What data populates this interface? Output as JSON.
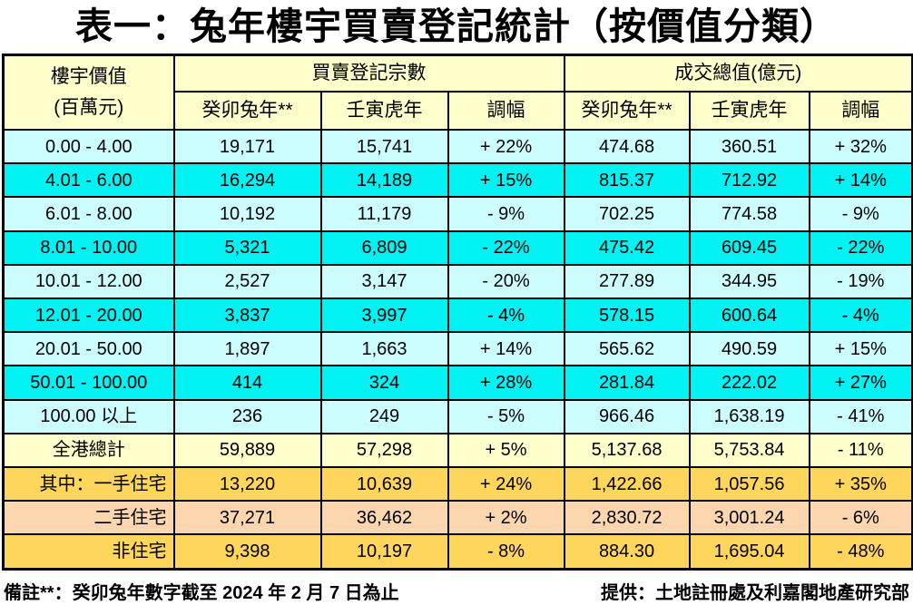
{
  "title": "表一：兔年樓宇買賣登記統計（按價值分類）",
  "colors": {
    "header_bg": "#FFFFCC",
    "border": "#000000",
    "text": "#000000",
    "row_styles": {
      "light_cyan": "#CCFEFF",
      "cyan": "#00F2F2",
      "total": "#FFFFCC",
      "gold": "#FFD65C",
      "peach": "#FBD6AF"
    }
  },
  "table": {
    "corner_header": {
      "line1": "樓宇價值",
      "line2": "(百萬元)"
    },
    "groups": [
      {
        "label": "買賣登記宗數"
      },
      {
        "label": "成交總值(億元)"
      }
    ],
    "sub_headers": [
      "癸卯兔年**",
      "壬寅虎年",
      "調幅",
      "癸卯兔年**",
      "壬寅虎年",
      "調幅"
    ],
    "rows": [
      {
        "label": "0.00 - 4.00",
        "style": "light_cyan",
        "align": "center",
        "cells": [
          "19,171",
          "15,741",
          "+ 22%",
          "474.68",
          "360.51",
          "+ 32%"
        ]
      },
      {
        "label": "4.01 - 6.00",
        "style": "cyan",
        "align": "center",
        "cells": [
          "16,294",
          "14,189",
          "+ 15%",
          "815.37",
          "712.92",
          "+ 14%"
        ]
      },
      {
        "label": "6.01 - 8.00",
        "style": "light_cyan",
        "align": "center",
        "cells": [
          "10,192",
          "11,179",
          "- 9%",
          "702.25",
          "774.58",
          "- 9%"
        ]
      },
      {
        "label": "8.01 - 10.00",
        "style": "cyan",
        "align": "center",
        "cells": [
          "5,321",
          "6,809",
          "- 22%",
          "475.42",
          "609.45",
          "- 22%"
        ]
      },
      {
        "label": "10.01 - 12.00",
        "style": "light_cyan",
        "align": "center",
        "cells": [
          "2,527",
          "3,147",
          "- 20%",
          "277.89",
          "344.95",
          "- 19%"
        ]
      },
      {
        "label": "12.01 - 20.00",
        "style": "cyan",
        "align": "center",
        "cells": [
          "3,837",
          "3,997",
          "- 4%",
          "578.15",
          "600.64",
          "- 4%"
        ]
      },
      {
        "label": "20.01 - 50.00",
        "style": "light_cyan",
        "align": "center",
        "cells": [
          "1,897",
          "1,663",
          "+ 14%",
          "565.62",
          "490.59",
          "+ 15%"
        ]
      },
      {
        "label": "50.01 - 100.00",
        "style": "cyan",
        "align": "center",
        "cells": [
          "414",
          "324",
          "+ 28%",
          "281.84",
          "222.02",
          "+ 27%"
        ]
      },
      {
        "label": "100.00 以上",
        "style": "light_cyan",
        "align": "center",
        "cells": [
          "236",
          "249",
          "- 5%",
          "966.46",
          "1,638.19",
          "- 41%"
        ]
      },
      {
        "label": "全港總計",
        "style": "total",
        "align": "center",
        "cells": [
          "59,889",
          "57,298",
          "+ 5%",
          "5,137.68",
          "5,753.84",
          "- 11%"
        ]
      },
      {
        "label": "其中：一手住宅",
        "style": "gold",
        "align": "right",
        "cells": [
          "13,220",
          "10,639",
          "+ 24%",
          "1,422.66",
          "1,057.56",
          "+ 35%"
        ]
      },
      {
        "label": "二手住宅",
        "style": "peach",
        "align": "right",
        "cells": [
          "37,271",
          "36,462",
          "+ 2%",
          "2,830.72",
          "3,001.24",
          "- 6%"
        ]
      },
      {
        "label": "非住宅",
        "style": "gold",
        "align": "right",
        "cells": [
          "9,398",
          "10,197",
          "- 8%",
          "884.30",
          "1,695.04",
          "- 48%"
        ]
      }
    ]
  },
  "footer": {
    "left": "備註**：癸卯兔年數字截至 2024 年 2 月 7 日為止",
    "right": "提供：土地註冊處及利嘉閣地產研究部"
  }
}
